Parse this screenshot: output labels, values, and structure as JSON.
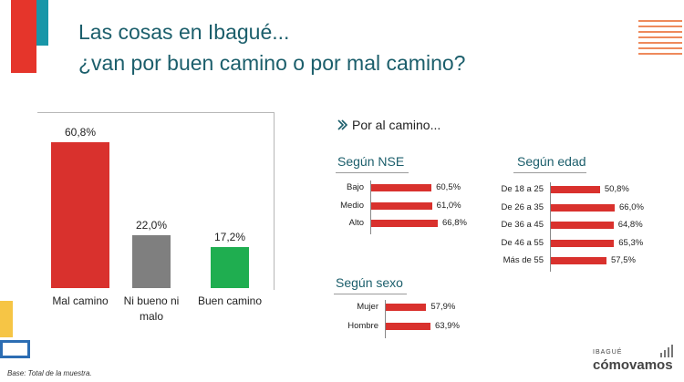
{
  "title": {
    "line1": "Las cosas en Ibagué...",
    "line2": "¿van por buen camino o por mal camino?"
  },
  "colors": {
    "accent_red": "#e5352b",
    "teal": "#1896a8",
    "title": "#1b5e6b",
    "bar_red": "#d9312d",
    "bar_gray": "#7f7f7f",
    "bar_green": "#1fae50"
  },
  "footnote": "Base: Total de la muestra.",
  "brand": {
    "city": "IBAGUÉ",
    "name": "cómovamos",
    "icon": "bar-chart-icon"
  },
  "chart_data": [
    {
      "type": "bar",
      "categories": [
        "Mal camino",
        "Ni bueno ni malo",
        "Buen camino"
      ],
      "values": [
        60.8,
        22.0,
        17.2
      ],
      "labels": [
        "60,8%",
        "22,0%",
        "17,2%"
      ],
      "colors": [
        "#d9312d",
        "#7f7f7f",
        "#1fae50"
      ],
      "ylim": [
        0,
        70
      ]
    },
    {
      "type": "bar",
      "orientation": "horizontal",
      "header": "Por al camino...",
      "header_icon": "double-chevron-icon",
      "title": "Según NSE",
      "categories": [
        "Bajo",
        "Medio",
        "Alto"
      ],
      "values": [
        60.5,
        61.0,
        66.8
      ],
      "labels": [
        "60,5%",
        "61,0%",
        "66,8%"
      ]
    },
    {
      "type": "bar",
      "orientation": "horizontal",
      "title": "Según edad",
      "categories": [
        "De 18 a 25",
        "De 26 a 35",
        "De 36 a 45",
        "De 46 a 55",
        "Más de 55"
      ],
      "values": [
        50.8,
        66.0,
        64.8,
        65.3,
        57.5
      ],
      "labels": [
        "50,8%",
        "66,0%",
        "64,8%",
        "65,3%",
        "57,5%"
      ]
    },
    {
      "type": "bar",
      "orientation": "horizontal",
      "title": "Según sexo",
      "categories": [
        "Mujer",
        "Hombre"
      ],
      "values": [
        57.9,
        63.9
      ],
      "labels": [
        "57,9%",
        "63,9%"
      ]
    }
  ]
}
